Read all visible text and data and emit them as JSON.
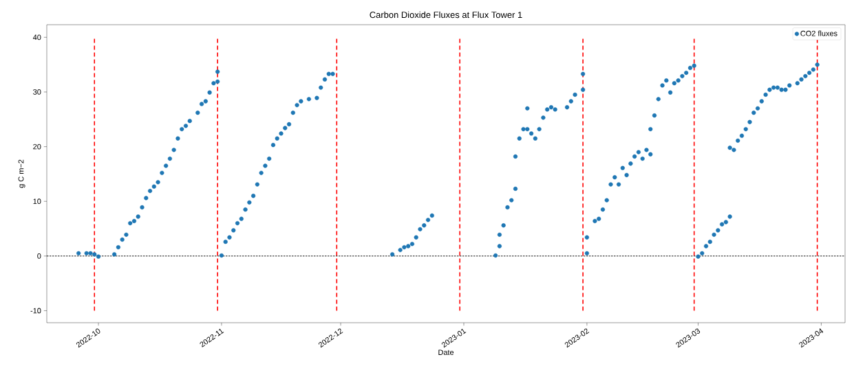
{
  "chart_data": {
    "type": "scatter",
    "title": "Carbon Dioxide Fluxes at Flux Tower 1",
    "xlabel": "Date",
    "ylabel": "g C m−2",
    "xlim": [
      "2022-09-18",
      "2023-04-07"
    ],
    "ylim": [
      -12.2,
      42.3
    ],
    "xticks": [
      {
        "value": "2022-10-01",
        "label": "2022-10"
      },
      {
        "value": "2022-11-01",
        "label": "2022-11"
      },
      {
        "value": "2022-12-01",
        "label": "2022-12"
      },
      {
        "value": "2023-01-01",
        "label": "2023-01"
      },
      {
        "value": "2023-02-01",
        "label": "2023-02"
      },
      {
        "value": "2023-03-01",
        "label": "2023-03"
      },
      {
        "value": "2023-04-01",
        "label": "2023-04"
      }
    ],
    "yticks": [
      -10,
      0,
      10,
      20,
      30,
      40
    ],
    "legend": "top right",
    "marker": "circle",
    "grid": false,
    "ref_lines": [
      {
        "axis": "x",
        "value": "2022-09-30",
        "color": "#ff0000",
        "line_style": "dashed"
      },
      {
        "axis": "x",
        "value": "2022-10-31",
        "color": "#ff0000",
        "line_style": "dashed"
      },
      {
        "axis": "x",
        "value": "2022-11-30",
        "color": "#ff0000",
        "line_style": "dashed"
      },
      {
        "axis": "x",
        "value": "2022-12-31",
        "color": "#ff0000",
        "line_style": "dashed"
      },
      {
        "axis": "x",
        "value": "2023-01-31",
        "color": "#ff0000",
        "line_style": "dashed"
      },
      {
        "axis": "x",
        "value": "2023-02-28",
        "color": "#ff0000",
        "line_style": "dashed"
      },
      {
        "axis": "x",
        "value": "2023-03-31",
        "color": "#ff0000",
        "line_style": "dashed"
      },
      {
        "axis": "y",
        "value": 0,
        "color": "#000000",
        "line_style": "dotted"
      }
    ],
    "series": [
      {
        "name": "CO2 fluxes",
        "color": "#1f77b4",
        "x": [
          "2022-09-26",
          "2022-09-28",
          "2022-09-29",
          "2022-09-30",
          "2022-10-01",
          "2022-10-05",
          "2022-10-06",
          "2022-10-07",
          "2022-10-08",
          "2022-10-09",
          "2022-10-10",
          "2022-10-11",
          "2022-10-12",
          "2022-10-13",
          "2022-10-14",
          "2022-10-15",
          "2022-10-16",
          "2022-10-17",
          "2022-10-18",
          "2022-10-19",
          "2022-10-20",
          "2022-10-21",
          "2022-10-22",
          "2022-10-23",
          "2022-10-24",
          "2022-10-26",
          "2022-10-27",
          "2022-10-28",
          "2022-10-29",
          "2022-10-30",
          "2022-10-31",
          "2022-10-31",
          "2022-11-01",
          "2022-11-02",
          "2022-11-03",
          "2022-11-04",
          "2022-11-05",
          "2022-11-06",
          "2022-11-07",
          "2022-11-08",
          "2022-11-09",
          "2022-11-10",
          "2022-11-11",
          "2022-11-12",
          "2022-11-13",
          "2022-11-14",
          "2022-11-15",
          "2022-11-16",
          "2022-11-17",
          "2022-11-18",
          "2022-11-19",
          "2022-11-20",
          "2022-11-21",
          "2022-11-23",
          "2022-11-25",
          "2022-11-26",
          "2022-11-27",
          "2022-11-28",
          "2022-11-29",
          "2022-12-14",
          "2022-12-16",
          "2022-12-17",
          "2022-12-18",
          "2022-12-19",
          "2022-12-20",
          "2022-12-21",
          "2022-12-22",
          "2022-12-23",
          "2022-12-24",
          "2023-01-09",
          "2023-01-10",
          "2023-01-10",
          "2023-01-11",
          "2023-01-12",
          "2023-01-13",
          "2023-01-14",
          "2023-01-14",
          "2023-01-15",
          "2023-01-16",
          "2023-01-17",
          "2023-01-17",
          "2023-01-18",
          "2023-01-19",
          "2023-01-20",
          "2023-01-21",
          "2023-01-22",
          "2023-01-23",
          "2023-01-24",
          "2023-01-27",
          "2023-01-28",
          "2023-01-29",
          "2023-01-31",
          "2023-01-31",
          "2023-02-01",
          "2023-02-01",
          "2023-02-03",
          "2023-02-04",
          "2023-02-05",
          "2023-02-06",
          "2023-02-07",
          "2023-02-08",
          "2023-02-09",
          "2023-02-10",
          "2023-02-11",
          "2023-02-12",
          "2023-02-13",
          "2023-02-14",
          "2023-02-15",
          "2023-02-16",
          "2023-02-17",
          "2023-02-17",
          "2023-02-18",
          "2023-02-19",
          "2023-02-20",
          "2023-02-21",
          "2023-02-22",
          "2023-02-23",
          "2023-02-24",
          "2023-02-25",
          "2023-02-26",
          "2023-02-27",
          "2023-02-28",
          "2023-03-01",
          "2023-03-02",
          "2023-03-03",
          "2023-03-04",
          "2023-03-05",
          "2023-03-06",
          "2023-03-07",
          "2023-03-08",
          "2023-03-09",
          "2023-03-09",
          "2023-03-10",
          "2023-03-11",
          "2023-03-12",
          "2023-03-13",
          "2023-03-14",
          "2023-03-15",
          "2023-03-16",
          "2023-03-17",
          "2023-03-18",
          "2023-03-19",
          "2023-03-20",
          "2023-03-21",
          "2023-03-22",
          "2023-03-23",
          "2023-03-24",
          "2023-03-26",
          "2023-03-27",
          "2023-03-28",
          "2023-03-29",
          "2023-03-30",
          "2023-03-31"
        ],
        "values": [
          0.5,
          0.5,
          0.5,
          0.3,
          -0.1,
          0.3,
          1.6,
          3.0,
          3.9,
          6.0,
          6.4,
          7.2,
          8.9,
          10.6,
          11.9,
          12.7,
          13.5,
          15.2,
          16.5,
          17.8,
          19.4,
          21.5,
          23.2,
          23.8,
          24.7,
          26.2,
          27.8,
          28.3,
          29.9,
          31.6,
          33.7,
          31.9,
          0.1,
          2.6,
          3.4,
          4.7,
          6.0,
          6.8,
          8.5,
          9.8,
          11.0,
          13.1,
          15.2,
          16.5,
          17.8,
          20.3,
          21.5,
          22.4,
          23.4,
          24.1,
          26.2,
          27.6,
          28.3,
          28.7,
          28.9,
          30.8,
          32.3,
          33.3,
          33.3,
          0.3,
          1.1,
          1.6,
          1.8,
          2.2,
          3.4,
          4.9,
          5.6,
          6.6,
          7.4,
          0.1,
          1.8,
          3.9,
          5.6,
          8.9,
          10.2,
          12.3,
          18.2,
          21.5,
          23.2,
          27.0,
          23.2,
          22.4,
          21.5,
          23.2,
          25.3,
          26.8,
          27.2,
          26.8,
          27.2,
          28.3,
          29.5,
          33.3,
          30.4,
          0.5,
          3.4,
          6.4,
          6.8,
          8.5,
          10.2,
          13.1,
          14.4,
          13.1,
          16.1,
          14.8,
          16.9,
          18.2,
          19.0,
          17.8,
          19.4,
          18.6,
          23.2,
          25.7,
          28.7,
          31.2,
          32.1,
          29.9,
          31.6,
          32.1,
          32.9,
          33.5,
          34.4,
          34.8,
          -0.1,
          0.5,
          1.8,
          2.6,
          3.9,
          4.7,
          5.8,
          6.2,
          7.2,
          19.8,
          19.4,
          21.1,
          22.0,
          23.2,
          24.5,
          26.2,
          27.0,
          28.3,
          29.5,
          30.4,
          30.8,
          30.8,
          30.4,
          30.4,
          31.2,
          31.6,
          32.3,
          32.9,
          33.5,
          34.1,
          35.0
        ]
      }
    ]
  }
}
